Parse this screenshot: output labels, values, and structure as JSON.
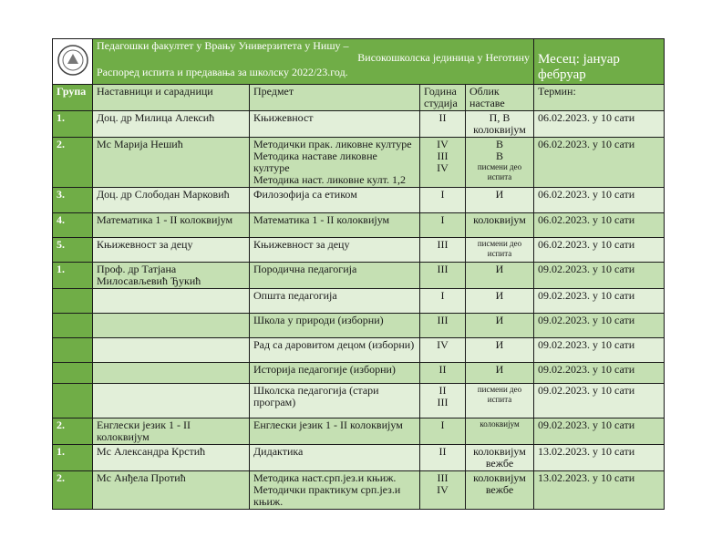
{
  "header": {
    "line1": "Педагошки факултет у Врању Универзитета у Нишу –",
    "line2": "Високошколска јединица у Неготину",
    "line3": "Распоред испита и предавања за школску 2022/23.год.",
    "month": "Месец: јануар фебруар",
    "logo": "university-seal-icon"
  },
  "columns": [
    "Група",
    "Наставници и сарадници",
    "Предмет",
    "Година студија",
    "Облик наставе",
    "Термин:"
  ],
  "colors": {
    "dark": "#70ad47",
    "light": "#e2efd9",
    "medium": "#c5e0b3"
  },
  "rows": [
    {
      "group": "1.",
      "teacher": "Доц. др Милица Алексић",
      "subject": "Књижевност",
      "year": "II",
      "form": "П, В колоквијум",
      "term": "06.02.2023. у 10 сати"
    },
    {
      "group": "2.",
      "teacher": "Мс Марија Нешић",
      "subject": "Методички прак. ликовне културе\nМетодика наставе ликовне културе\nМетодика наст. ликовне култ. 1,2",
      "year": "IV\nIII\nIV",
      "form": "В\nВ",
      "form_small": "писмени део испита",
      "term": "06.02.2023. у 10 сати"
    },
    {
      "group": "3.",
      "teacher": "Доц. др Слободан Марковић",
      "subject": "Филозофија са етиком",
      "year": "I",
      "form": "И",
      "term": "06.02.2023. у 10 сати"
    },
    {
      "group": "4.",
      "teacher": "Математика 1 - II колоквијум",
      "subject": "Математика 1 - II колоквијум",
      "year": "I",
      "form": "колоквијум",
      "term": "06.02.2023. у 10 сати"
    },
    {
      "group": "5.",
      "teacher": "Књижевност за децу",
      "subject": "Књижевност за децу",
      "year": "III",
      "form_small": "писмени део испита",
      "term": "06.02.2023. у 10 сати"
    },
    {
      "group": "1.",
      "teacher": "Проф. др Татјана Милосављевић Ђукић",
      "subject": "Породична педагогија",
      "year": "III",
      "form": "И",
      "term": "09.02.2023. у 10 сати"
    },
    {
      "group": "",
      "teacher": "",
      "subject": "Општа педагогија",
      "year": "I",
      "form": "И",
      "term": "09.02.2023. у 10 сати"
    },
    {
      "group": "",
      "teacher": "",
      "subject": "Школа у природи (изборни)",
      "year": "III",
      "form": "И",
      "term": "09.02.2023. у 10 сати"
    },
    {
      "group": "",
      "teacher": "",
      "subject": "Рад са даровитом децом (изборни)",
      "year": "IV",
      "form": "И",
      "term": "09.02.2023. у 10 сати"
    },
    {
      "group": "",
      "teacher": "",
      "subject": "Историја педагогије (изборни)",
      "year": "II",
      "form": "И",
      "term": "09.02.2023. у 10 сати"
    },
    {
      "group": "",
      "teacher": "",
      "subject": "Школска педагогија (стари програм)",
      "year": "II\nIII",
      "form_small": "писмени део испита",
      "term": "09.02.2023. у 10 сати"
    },
    {
      "group": "2.",
      "teacher": "Енглески језик 1 - II колоквијум",
      "subject": "Енглески језик 1 - II колоквијум",
      "year": "I",
      "form_small": "колоквијум",
      "term": "09.02.2023. у 10 сати"
    },
    {
      "group": "1.",
      "teacher": "Мс Александра Крстић",
      "subject": "Дидактика",
      "year": "II",
      "form": "колоквијум вежбе",
      "term": "13.02.2023. у 10 сати"
    },
    {
      "group": "2.",
      "teacher": "Мс Анђела Протић",
      "subject": "Методика наст.срп.јез.и књиж.\nМетодички практикум срп.јез.и књиж.",
      "year": "III\nIV",
      "form": "колоквијум вежбе",
      "term": "13.02.2023. у 10 сати"
    }
  ]
}
